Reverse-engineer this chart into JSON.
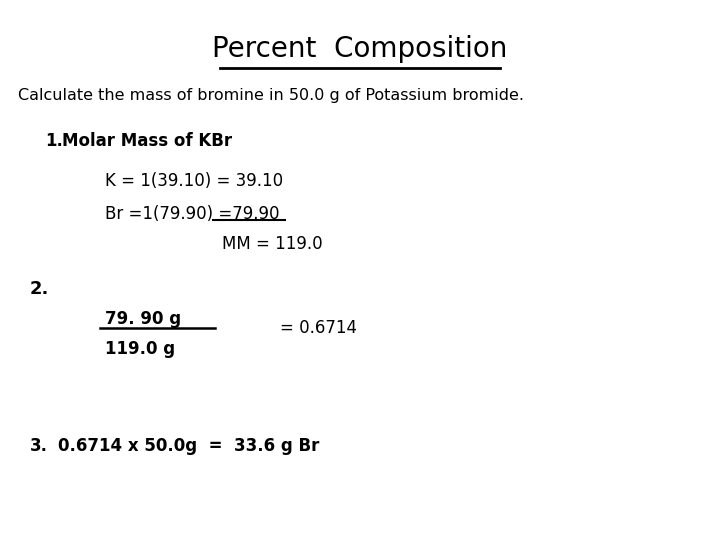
{
  "title": "Percent  Composition",
  "background_color": "#ffffff",
  "text_color": "#000000",
  "subtitle": "Calculate the mass of bromine in 50.0 g of Potassium bromide.",
  "step1_header_num": "1.",
  "step1_header_text": "  Molar Mass of KBr",
  "step1_line1": "K = 1(39.10) = 39.10",
  "step1_line2": "Br =1(79.90) =79.90",
  "step1_line3": "MM = 119.0",
  "step2_header": "2.",
  "step2_numerator": "79. 90 g",
  "step2_denominator": "119.0 g",
  "step2_result": "= 0.6714",
  "step3_num": "3.",
  "step3_text": "   0.6714 x 50.0g  =  33.6 g Br",
  "title_fontsize": 20,
  "subtitle_fontsize": 11.5,
  "step_fontsize": 12,
  "header1_fontsize": 12
}
